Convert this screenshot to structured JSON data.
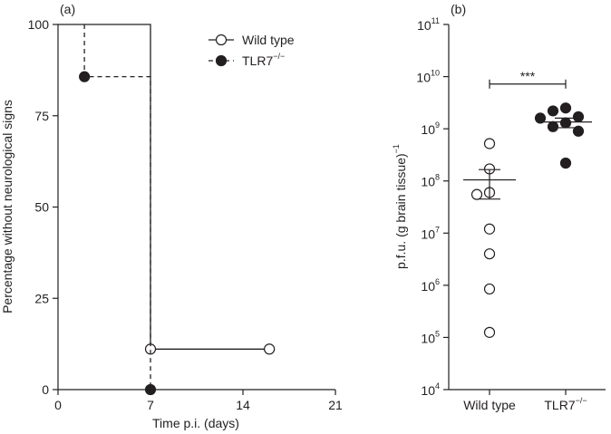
{
  "chart_data": [
    {
      "type": "line",
      "panel_label": "(a)",
      "xlabel": "Time p.i. (days)",
      "ylabel": "Percentage without neurological signs",
      "xlim": [
        0,
        21
      ],
      "ylim": [
        0,
        100
      ],
      "xticks": [
        "0",
        "7",
        "14",
        "21"
      ],
      "yticks": [
        "0",
        "25",
        "50",
        "75",
        "100"
      ],
      "step": true,
      "series": [
        {
          "name": "Wild type",
          "line": "solid",
          "marker": "open-circle",
          "steps": [
            [
              0,
              100
            ],
            [
              7,
              100
            ],
            [
              7,
              11.1
            ],
            [
              16,
              11.1
            ]
          ],
          "points": [
            [
              7,
              11.1
            ],
            [
              16,
              11.1
            ]
          ]
        },
        {
          "name": "TLR7",
          "name_sup": "−/−",
          "line": "dashed",
          "marker": "filled-circle",
          "steps": [
            [
              2,
              100
            ],
            [
              2,
              85.7
            ],
            [
              7,
              85.7
            ],
            [
              7,
              0
            ]
          ],
          "points": [
            [
              2,
              85.7
            ],
            [
              7,
              0
            ]
          ]
        }
      ],
      "legend_position": "top-right"
    },
    {
      "type": "scatter",
      "panel_label": "(b)",
      "ylabel": "p.f.u. (g brain tissue)",
      "ylabel_sup": "−1",
      "yscale": "log",
      "ylim": [
        10000,
        100000000000
      ],
      "yticks": [
        {
          "base": "10",
          "exp": "4"
        },
        {
          "base": "10",
          "exp": "5"
        },
        {
          "base": "10",
          "exp": "6"
        },
        {
          "base": "10",
          "exp": "7"
        },
        {
          "base": "10",
          "exp": "8"
        },
        {
          "base": "10",
          "exp": "9"
        },
        {
          "base": "10",
          "exp": "10"
        },
        {
          "base": "10",
          "exp": "11"
        }
      ],
      "categories": [
        {
          "label": "Wild type",
          "sup": ""
        },
        {
          "label": "TLR7",
          "sup": "−/−"
        }
      ],
      "groups": [
        {
          "marker": "open-circle",
          "values": [
            520000000,
            170000000,
            60000000,
            55000000,
            12000000,
            4000000,
            850000,
            125000
          ],
          "mean": 105000000,
          "sem_low": 45000000,
          "sem_high": 165000000
        },
        {
          "marker": "filled-circle",
          "values": [
            2500000000,
            2200000000,
            1700000000,
            1600000000,
            1300000000,
            1100000000,
            900000000,
            220000000
          ],
          "mean": 1350000000,
          "sem_low": 1050000000,
          "sem_high": 1600000000
        }
      ],
      "significance": "***"
    }
  ]
}
